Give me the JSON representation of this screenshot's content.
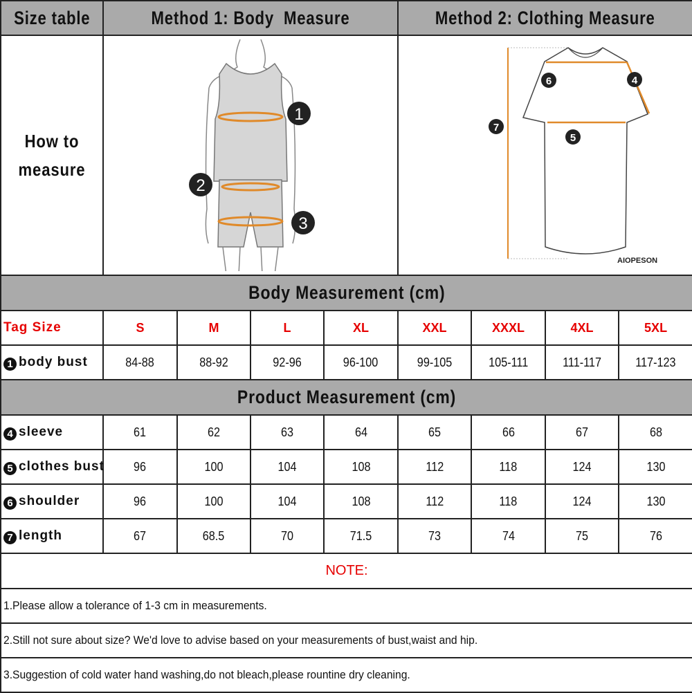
{
  "header": {
    "size_table": "Size table",
    "method1": "Method 1: Body  Measure",
    "method2": "Method 2: Clothing Measure"
  },
  "how_to": {
    "line1": "How to",
    "line2": "measure"
  },
  "illustrations": {
    "body_markers": [
      "1",
      "2",
      "3"
    ],
    "shirt_markers": [
      "4",
      "5",
      "6",
      "7"
    ],
    "brand": "AIOPESON",
    "accent_color": "#e08a2a"
  },
  "body_section": {
    "title": "Body Measurement (cm)",
    "tag_label": "Tag Size",
    "sizes": [
      "S",
      "M",
      "L",
      "XL",
      "XXL",
      "XXXL",
      "4XL",
      "5XL"
    ],
    "rows": [
      {
        "num": "1",
        "label": "body bust",
        "values": [
          "84-88",
          "88-92",
          "92-96",
          "96-100",
          "99-105",
          "105-111",
          "111-117",
          "117-123"
        ]
      }
    ]
  },
  "product_section": {
    "title": "Product Measurement (cm)",
    "rows": [
      {
        "num": "4",
        "label": "sleeve",
        "values": [
          "61",
          "62",
          "63",
          "64",
          "65",
          "66",
          "67",
          "68"
        ]
      },
      {
        "num": "5",
        "label": "clothes bust",
        "values": [
          "96",
          "100",
          "104",
          "108",
          "112",
          "118",
          "124",
          "130"
        ]
      },
      {
        "num": "6",
        "label": "shoulder",
        "values": [
          "96",
          "100",
          "104",
          "108",
          "112",
          "118",
          "124",
          "130"
        ]
      },
      {
        "num": "7",
        "label": "length",
        "values": [
          "67",
          "68.5",
          "70",
          "71.5",
          "73",
          "74",
          "75",
          "76"
        ]
      }
    ]
  },
  "notes": {
    "title": "NOTE:",
    "items": [
      "1.Please allow a tolerance of 1-3 cm in measurements.",
      "2.Still not sure about size? We'd love to advise based on your measurements of bust,waist and hip.",
      "3.Suggestion of cold water hand washing,do not bleach,please rountine dry cleaning."
    ]
  },
  "colors": {
    "header_gray": "#aaaaaa",
    "size_red": "#e60000",
    "border": "#222222"
  }
}
